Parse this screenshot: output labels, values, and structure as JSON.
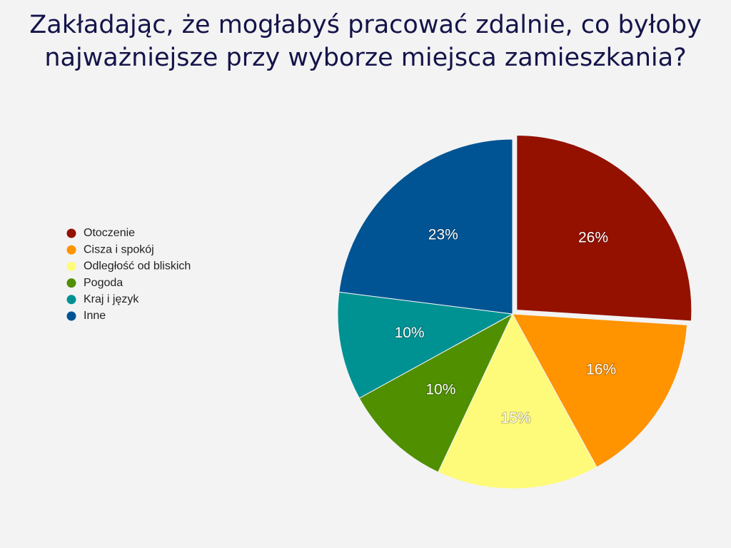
{
  "chart_data": {
    "type": "pie",
    "title": "Zakładając, że mogłabyś pracować zdalnie, co byłoby najważniejsze przy wyborze miejsca zamieszkania?",
    "categories": [
      "Otoczenie",
      "Cisza i spokój",
      "Odległość od bliskich",
      "Pogoda",
      "Kraj i język",
      "Inne"
    ],
    "values": [
      26,
      16,
      15,
      10,
      10,
      23
    ],
    "value_labels": [
      "26%",
      "16%",
      "15%",
      "10%",
      "10%",
      "23%"
    ],
    "colors": [
      "#941100",
      "#ff9300",
      "#fffb7a",
      "#4f8f00",
      "#009193",
      "#005493"
    ],
    "legend": "left"
  }
}
